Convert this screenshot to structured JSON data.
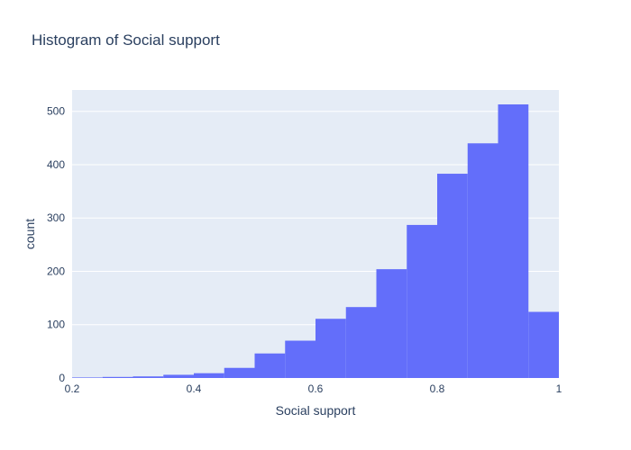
{
  "chart_data": {
    "type": "bar",
    "title": "Histogram of Social support",
    "xlabel": "Social support",
    "ylabel": "count",
    "xlim": [
      0.2,
      1.0
    ],
    "ylim": [
      0,
      540
    ],
    "x_ticks": [
      "0.2",
      "0.4",
      "0.6",
      "0.8",
      "1"
    ],
    "y_ticks": [
      "0",
      "100",
      "200",
      "300",
      "400",
      "500"
    ],
    "bin_edges": [
      0.2,
      0.25,
      0.3,
      0.35,
      0.4,
      0.45,
      0.5,
      0.55,
      0.6,
      0.65,
      0.7,
      0.75,
      0.8,
      0.85,
      0.9,
      0.95,
      1.0
    ],
    "values": [
      1,
      2,
      3,
      6,
      9,
      19,
      46,
      70,
      111,
      133,
      204,
      287,
      383,
      440,
      513,
      124
    ],
    "grid": true,
    "colors": {
      "bar": "#636efa",
      "plot_bg": "#e5ecf6",
      "grid": "#ffffff",
      "text": "#2a3f5f"
    }
  }
}
